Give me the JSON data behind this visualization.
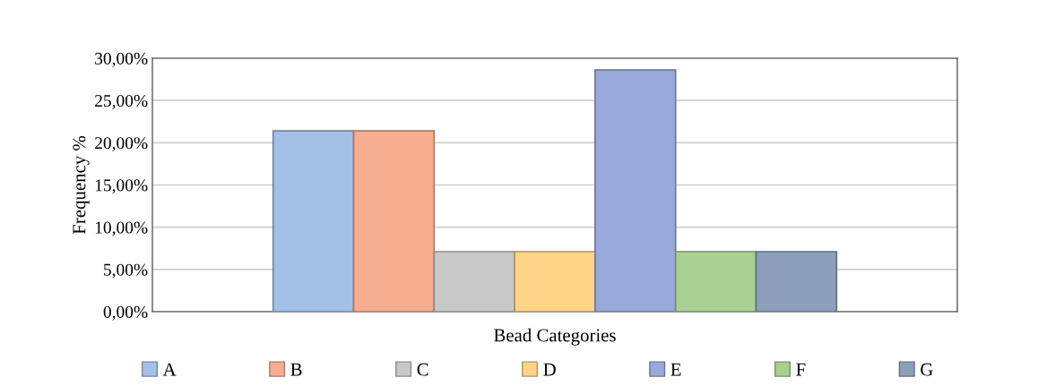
{
  "chart_data": {
    "type": "bar",
    "xlabel": "Bead Categories",
    "ylabel": "Frequency %",
    "categories": [
      null
    ],
    "series": [
      {
        "name": "A",
        "color": "#a3c1e6",
        "values": [
          21.4
        ]
      },
      {
        "name": "B",
        "color": "#f5ae90",
        "values": [
          21.4
        ]
      },
      {
        "name": "C",
        "color": "#c8c8c8",
        "values": [
          7.1
        ]
      },
      {
        "name": "D",
        "color": "#fdd488",
        "values": [
          7.1
        ]
      },
      {
        "name": "E",
        "color": "#99a9da",
        "values": [
          28.6
        ]
      },
      {
        "name": "F",
        "color": "#a9cf93",
        "values": [
          7.1
        ]
      },
      {
        "name": "G",
        "color": "#8e9fbb",
        "values": [
          7.1
        ]
      }
    ],
    "ylim": [
      0,
      30
    ],
    "yticks": [
      {
        "value": 0,
        "label": "0,00%"
      },
      {
        "value": 5,
        "label": "5,00%"
      },
      {
        "value": 10,
        "label": "10,00%"
      },
      {
        "value": 15,
        "label": "15,00%"
      },
      {
        "value": 20,
        "label": "20,00%"
      },
      {
        "value": 25,
        "label": "25,00%"
      },
      {
        "value": 30,
        "label": "30,00%"
      }
    ],
    "grid": "y",
    "legend": "bottom"
  }
}
